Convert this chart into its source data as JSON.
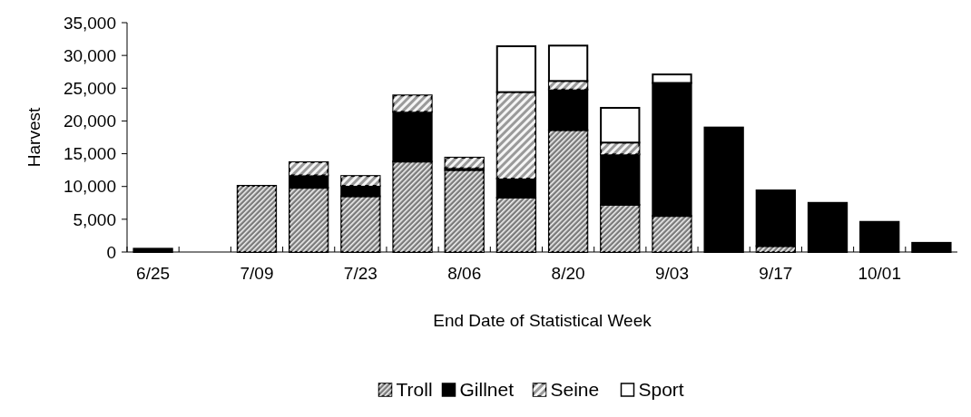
{
  "chart_data": {
    "type": "bar",
    "stacked": true,
    "xlabel": "End Date of Statistical Week",
    "ylabel": "Harvest",
    "categories": [
      "6/25",
      null,
      "7/09",
      null,
      "7/23",
      null,
      "8/06",
      null,
      "8/20",
      null,
      "9/03",
      null,
      "9/17",
      null,
      "10/01",
      null
    ],
    "series": [
      {
        "name": "Troll",
        "color": "#7a7a7a",
        "values": [
          0,
          0,
          10100,
          9800,
          8500,
          13800,
          12500,
          8300,
          18600,
          7200,
          5500,
          0,
          900,
          0,
          0,
          0
        ]
      },
      {
        "name": "Gillnet",
        "color": "#000000",
        "values": [
          500,
          0,
          0,
          1900,
          1600,
          7600,
          300,
          2900,
          6200,
          7700,
          20300,
          19000,
          8500,
          7500,
          4600,
          1400
        ]
      },
      {
        "name": "Seine",
        "color": "#9a9a9a",
        "values": [
          0,
          0,
          0,
          2000,
          1500,
          2500,
          1600,
          13200,
          1300,
          1800,
          0,
          0,
          0,
          0,
          0,
          0
        ]
      },
      {
        "name": "Sport",
        "color": "#ffffff",
        "values": [
          0,
          0,
          0,
          0,
          0,
          0,
          0,
          7000,
          5400,
          5300,
          1300,
          0,
          0,
          0,
          0,
          0
        ]
      }
    ],
    "ylim": [
      0,
      35000
    ],
    "yticks": [
      {
        "value": 0,
        "label": "0"
      },
      {
        "value": 5000,
        "label": "5,000"
      },
      {
        "value": 10000,
        "label": "10,000"
      },
      {
        "value": 15000,
        "label": "15,000"
      },
      {
        "value": 20000,
        "label": "20,000"
      },
      {
        "value": 25000,
        "label": "25,000"
      },
      {
        "value": 30000,
        "label": "30,000"
      },
      {
        "value": 35000,
        "label": "35,000"
      }
    ],
    "grid": false,
    "legend": "bottom"
  }
}
